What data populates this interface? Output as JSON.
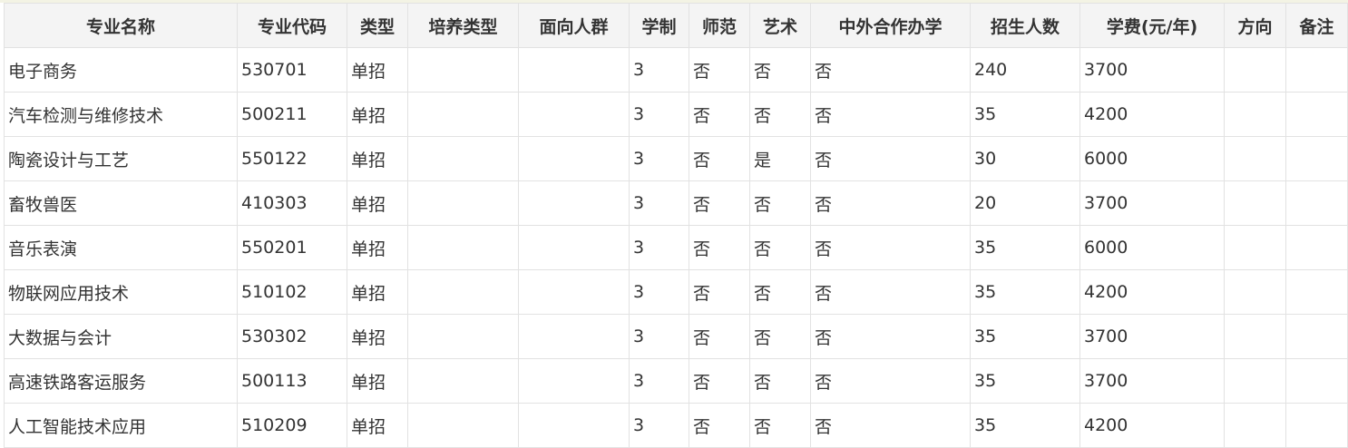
{
  "table": {
    "headers": [
      "专业名称",
      "专业代码",
      "类型",
      "培养类型",
      "面向人群",
      "学制",
      "师范",
      "艺术",
      "中外合作办学",
      "招生人数",
      "学费(元/年)",
      "方向",
      "备注"
    ],
    "rows": [
      [
        "电子商务",
        "530701",
        "单招",
        "",
        "",
        "3",
        "否",
        "否",
        "否",
        "240",
        "3700",
        "",
        ""
      ],
      [
        "汽车检测与维修技术",
        "500211",
        "单招",
        "",
        "",
        "3",
        "否",
        "否",
        "否",
        "35",
        "4200",
        "",
        ""
      ],
      [
        "陶瓷设计与工艺",
        "550122",
        "单招",
        "",
        "",
        "3",
        "否",
        "是",
        "否",
        "30",
        "6000",
        "",
        ""
      ],
      [
        "畜牧兽医",
        "410303",
        "单招",
        "",
        "",
        "3",
        "否",
        "否",
        "否",
        "20",
        "3700",
        "",
        ""
      ],
      [
        "音乐表演",
        "550201",
        "单招",
        "",
        "",
        "3",
        "否",
        "否",
        "否",
        "35",
        "6000",
        "",
        ""
      ],
      [
        "物联网应用技术",
        "510102",
        "单招",
        "",
        "",
        "3",
        "否",
        "否",
        "否",
        "35",
        "4200",
        "",
        ""
      ],
      [
        "大数据与会计",
        "530302",
        "单招",
        "",
        "",
        "3",
        "否",
        "否",
        "否",
        "35",
        "3700",
        "",
        ""
      ],
      [
        "高速铁路客运服务",
        "500113",
        "单招",
        "",
        "",
        "3",
        "否",
        "否",
        "否",
        "35",
        "3700",
        "",
        ""
      ],
      [
        "人工智能技术应用",
        "510209",
        "单招",
        "",
        "",
        "3",
        "否",
        "否",
        "否",
        "35",
        "4200",
        "",
        ""
      ]
    ]
  }
}
